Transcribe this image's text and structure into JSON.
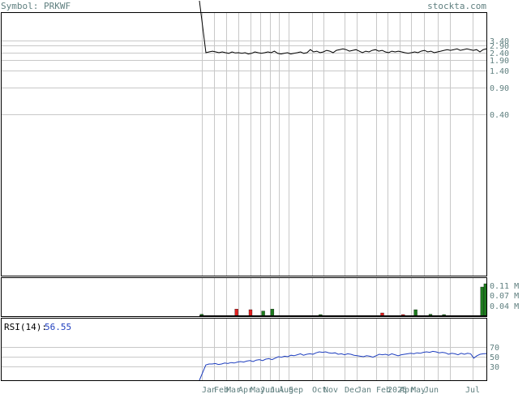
{
  "header": {
    "symbol_label": "Symbol: PRKWF",
    "site": "stockta.com"
  },
  "colors": {
    "text": "#5f7f7f",
    "frame": "#000000",
    "grid": "#c8c8c8",
    "price_line": "#000000",
    "rsi_line": "#1f3fbf",
    "rsi_value": "#1f3fbf",
    "volume_up": "#1e7a1e",
    "volume_down": "#e02020"
  },
  "chart_data": [
    {
      "type": "line",
      "name": "price",
      "y_scale": "log",
      "y_ticks": [
        "3.40",
        "2.90",
        "2.40",
        "1.90",
        "1.40",
        "0.90",
        "0.40"
      ],
      "x_tick_labels": [
        "Jan",
        "Feb",
        "Mar",
        "Apr",
        "May",
        "Jun",
        "Jul",
        "Aug",
        "Sep",
        "Oct",
        "Nov",
        "Dec",
        "Jan",
        "Feb",
        "2025",
        "Apr",
        "May",
        "Jun",
        "Jul"
      ],
      "series": [
        {
          "values": [
            25.0,
            2.4,
            2.45,
            2.5,
            2.45,
            2.4,
            2.45,
            2.4,
            2.35,
            2.45,
            2.38,
            2.4,
            2.35,
            2.4,
            2.3,
            2.35,
            2.45,
            2.4,
            2.35,
            2.4,
            2.45,
            2.4,
            2.5,
            2.35,
            2.3,
            2.35,
            2.4,
            2.3,
            2.35,
            2.4,
            2.45,
            2.35,
            2.4,
            2.6,
            2.45,
            2.5,
            2.4,
            2.45,
            2.55,
            2.5,
            2.4,
            2.55,
            2.6,
            2.65,
            2.6,
            2.5,
            2.55,
            2.6,
            2.5,
            2.4,
            2.5,
            2.45,
            2.55,
            2.6,
            2.5,
            2.55,
            2.45,
            2.4,
            2.5,
            2.45,
            2.5,
            2.45,
            2.4,
            2.35,
            2.4,
            2.45,
            2.4,
            2.5,
            2.55,
            2.45,
            2.5,
            2.4,
            2.45,
            2.5,
            2.55,
            2.6,
            2.55,
            2.6,
            2.65,
            2.55,
            2.6,
            2.65,
            2.6,
            2.55,
            2.6,
            2.45,
            2.6,
            2.65
          ]
        }
      ]
    },
    {
      "type": "bar",
      "name": "volume",
      "y_ticks": [
        "0.11 M",
        "0.07 M",
        "0.04 M"
      ],
      "ylim": [
        0,
        0.12
      ],
      "bars": [
        {
          "t": 0.008,
          "v": 0.006,
          "dir": "up"
        },
        {
          "t": 0.129,
          "v": 0.022,
          "dir": "down"
        },
        {
          "t": 0.178,
          "v": 0.02,
          "dir": "down"
        },
        {
          "t": 0.222,
          "v": 0.016,
          "dir": "up"
        },
        {
          "t": 0.254,
          "v": 0.022,
          "dir": "up"
        },
        {
          "t": 0.422,
          "v": 0.004,
          "dir": "up"
        },
        {
          "t": 0.637,
          "v": 0.01,
          "dir": "down"
        },
        {
          "t": 0.71,
          "v": 0.004,
          "dir": "down"
        },
        {
          "t": 0.753,
          "v": 0.02,
          "dir": "up"
        },
        {
          "t": 0.805,
          "v": 0.006,
          "dir": "up"
        },
        {
          "t": 0.852,
          "v": 0.004,
          "dir": "up"
        },
        {
          "t": 0.985,
          "v": 0.09,
          "dir": "up"
        },
        {
          "t": 0.997,
          "v": 0.1,
          "dir": "up"
        }
      ]
    },
    {
      "type": "line",
      "name": "rsi",
      "label": "RSI(14):",
      "value_text": "56.55",
      "y_ticks": [
        "70",
        "50",
        "30"
      ],
      "ylim": [
        0,
        100
      ],
      "series": [
        {
          "values": [
            0,
            33,
            35,
            35,
            36,
            34,
            35,
            37,
            36,
            38,
            37,
            39,
            40,
            39,
            41,
            42,
            40,
            43,
            44,
            42,
            45,
            46,
            44,
            47,
            50,
            49,
            51,
            50,
            53,
            52,
            54,
            56,
            53,
            55,
            56,
            55,
            58,
            60,
            59,
            60,
            58,
            57,
            58,
            55,
            56,
            54,
            56,
            55,
            53,
            52,
            51,
            50,
            52,
            51,
            49,
            52,
            55,
            54,
            55,
            53,
            56,
            54,
            52,
            54,
            55,
            56,
            57,
            56,
            58,
            57,
            59,
            60,
            59,
            61,
            60,
            58,
            59,
            58,
            55,
            57,
            56,
            54,
            57,
            55,
            57,
            56,
            47,
            52,
            55,
            56,
            56.55
          ]
        }
      ]
    }
  ]
}
